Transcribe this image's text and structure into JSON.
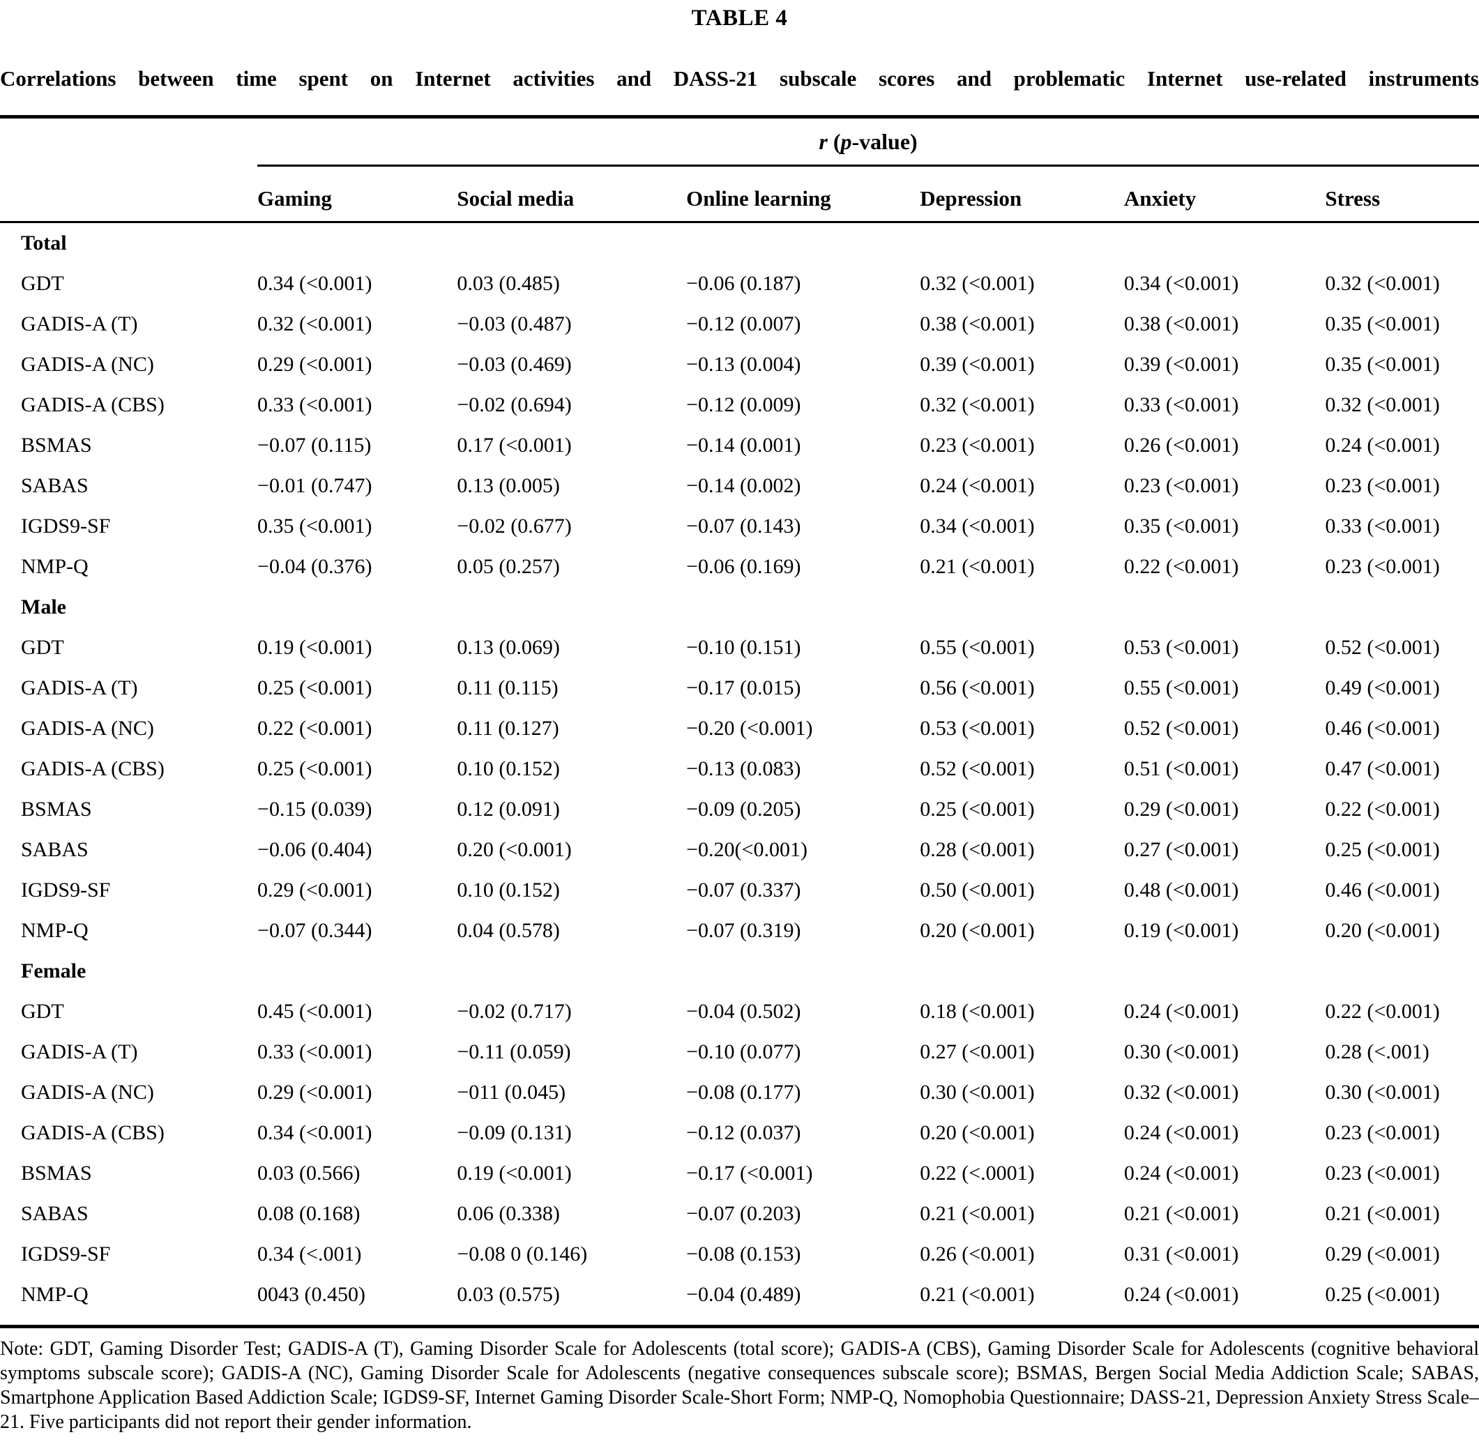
{
  "table": {
    "label": "TABLE 4",
    "title": "Correlations between time spent on Internet activities and DASS-21 subscale scores and problematic Internet use-related instruments",
    "spanner": {
      "r": "r",
      "mid": " (",
      "p": "p",
      "rest": "-value)"
    },
    "columns": [
      "Gaming",
      "Social media",
      "Online learning",
      "Depression",
      "Anxiety",
      "Stress"
    ],
    "sections": [
      {
        "name": "Total",
        "rows": [
          {
            "label": "GDT",
            "values": [
              "0.34 (<0.001)",
              "0.03 (0.485)",
              "−0.06 (0.187)",
              "0.32 (<0.001)",
              "0.34 (<0.001)",
              "0.32 (<0.001)"
            ]
          },
          {
            "label": "GADIS-A (T)",
            "values": [
              "0.32 (<0.001)",
              "−0.03 (0.487)",
              "−0.12 (0.007)",
              "0.38 (<0.001)",
              "0.38 (<0.001)",
              "0.35 (<0.001)"
            ]
          },
          {
            "label": "GADIS-A (NC)",
            "values": [
              "0.29 (<0.001)",
              "−0.03 (0.469)",
              "−0.13 (0.004)",
              "0.39 (<0.001)",
              "0.39 (<0.001)",
              "0.35 (<0.001)"
            ]
          },
          {
            "label": "GADIS-A (CBS)",
            "values": [
              "0.33 (<0.001)",
              "−0.02 (0.694)",
              "−0.12 (0.009)",
              "0.32 (<0.001)",
              "0.33 (<0.001)",
              "0.32 (<0.001)"
            ]
          },
          {
            "label": "BSMAS",
            "values": [
              "−0.07 (0.115)",
              "0.17 (<0.001)",
              "−0.14 (0.001)",
              "0.23 (<0.001)",
              "0.26 (<0.001)",
              "0.24 (<0.001)"
            ]
          },
          {
            "label": "SABAS",
            "values": [
              "−0.01 (0.747)",
              "0.13 (0.005)",
              "−0.14 (0.002)",
              "0.24 (<0.001)",
              "0.23 (<0.001)",
              "0.23 (<0.001)"
            ]
          },
          {
            "label": "IGDS9-SF",
            "values": [
              "0.35 (<0.001)",
              "−0.02 (0.677)",
              "−0.07 (0.143)",
              "0.34 (<0.001)",
              "0.35 (<0.001)",
              "0.33 (<0.001)"
            ]
          },
          {
            "label": "NMP-Q",
            "values": [
              "−0.04 (0.376)",
              "0.05 (0.257)",
              "−0.06 (0.169)",
              "0.21 (<0.001)",
              "0.22 (<0.001)",
              "0.23 (<0.001)"
            ]
          }
        ]
      },
      {
        "name": "Male",
        "rows": [
          {
            "label": "GDT",
            "values": [
              "0.19 (<0.001)",
              "0.13 (0.069)",
              "−0.10 (0.151)",
              "0.55 (<0.001)",
              "0.53 (<0.001)",
              "0.52 (<0.001)"
            ]
          },
          {
            "label": "GADIS-A (T)",
            "values": [
              "0.25 (<0.001)",
              "0.11 (0.115)",
              "−0.17 (0.015)",
              "0.56 (<0.001)",
              "0.55 (<0.001)",
              "0.49 (<0.001)"
            ]
          },
          {
            "label": "GADIS-A (NC)",
            "values": [
              "0.22 (<0.001)",
              "0.11 (0.127)",
              "−0.20 (<0.001)",
              "0.53 (<0.001)",
              "0.52 (<0.001)",
              "0.46 (<0.001)"
            ]
          },
          {
            "label": "GADIS-A (CBS)",
            "values": [
              "0.25 (<0.001)",
              "0.10 (0.152)",
              "−0.13 (0.083)",
              "0.52 (<0.001)",
              "0.51 (<0.001)",
              "0.47 (<0.001)"
            ]
          },
          {
            "label": "BSMAS",
            "values": [
              "−0.15 (0.039)",
              "0.12 (0.091)",
              "−0.09 (0.205)",
              "0.25 (<0.001)",
              "0.29 (<0.001)",
              "0.22 (<0.001)"
            ]
          },
          {
            "label": "SABAS",
            "values": [
              "−0.06 (0.404)",
              "0.20 (<0.001)",
              "−0.20(<0.001)",
              "0.28 (<0.001)",
              "0.27 (<0.001)",
              "0.25 (<0.001)"
            ]
          },
          {
            "label": "IGDS9-SF",
            "values": [
              "0.29 (<0.001)",
              "0.10 (0.152)",
              "−0.07 (0.337)",
              "0.50 (<0.001)",
              "0.48 (<0.001)",
              "0.46 (<0.001)"
            ]
          },
          {
            "label": "NMP-Q",
            "values": [
              "−0.07 (0.344)",
              "0.04 (0.578)",
              "−0.07 (0.319)",
              "0.20 (<0.001)",
              "0.19 (<0.001)",
              "0.20 (<0.001)"
            ]
          }
        ]
      },
      {
        "name": "Female",
        "rows": [
          {
            "label": "GDT",
            "values": [
              "0.45 (<0.001)",
              "−0.02 (0.717)",
              "−0.04 (0.502)",
              "0.18 (<0.001)",
              "0.24 (<0.001)",
              "0.22 (<0.001)"
            ]
          },
          {
            "label": "GADIS-A (T)",
            "values": [
              "0.33 (<0.001)",
              "−0.11 (0.059)",
              "−0.10 (0.077)",
              "0.27 (<0.001)",
              "0.30 (<0.001)",
              "0.28 (<.001)"
            ]
          },
          {
            "label": "GADIS-A (NC)",
            "values": [
              "0.29 (<0.001)",
              "−011 (0.045)",
              "−0.08 (0.177)",
              "0.30 (<0.001)",
              "0.32 (<0.001)",
              "0.30 (<0.001)"
            ]
          },
          {
            "label": "GADIS-A (CBS)",
            "values": [
              "0.34 (<0.001)",
              "−0.09 (0.131)",
              "−0.12 (0.037)",
              "0.20 (<0.001)",
              "0.24 (<0.001)",
              "0.23 (<0.001)"
            ]
          },
          {
            "label": "BSMAS",
            "values": [
              "0.03 (0.566)",
              "0.19 (<0.001)",
              "−0.17 (<0.001)",
              "0.22 (<.0001)",
              "0.24 (<0.001)",
              "0.23 (<0.001)"
            ]
          },
          {
            "label": "SABAS",
            "values": [
              "0.08 (0.168)",
              "0.06 (0.338)",
              "−0.07 (0.203)",
              "0.21 (<0.001)",
              "0.21 (<0.001)",
              "0.21 (<0.001)"
            ]
          },
          {
            "label": "IGDS9-SF",
            "values": [
              "0.34 (<.001)",
              "−0.08 0 (0.146)",
              "−0.08 (0.153)",
              "0.26 (<0.001)",
              "0.31 (<0.001)",
              "0.29 (<0.001)"
            ]
          },
          {
            "label": "NMP-Q",
            "values": [
              "0043 (0.450)",
              "0.03 (0.575)",
              "−0.04 (0.489)",
              "0.21 (<0.001)",
              "0.24 (<0.001)",
              "0.25 (<0.001)"
            ]
          }
        ]
      }
    ],
    "note": "Note: GDT, Gaming Disorder Test; GADIS-A (T), Gaming Disorder Scale for Adolescents (total score); GADIS-A (CBS), Gaming Disorder Scale for Adolescents (cognitive behavioral symptoms subscale score); GADIS-A (NC), Gaming Disorder Scale for Adolescents (negative consequences subscale score); BSMAS, Bergen Social Media Addiction Scale; SABAS, Smartphone Application Based Addiction Scale; IGDS9-SF, Internet Gaming Disorder Scale-Short Form; NMP-Q, Nomophobia Questionnaire; DASS-21, Depression Anxiety Stress Scale–21. Five participants did not report their gender information."
  }
}
